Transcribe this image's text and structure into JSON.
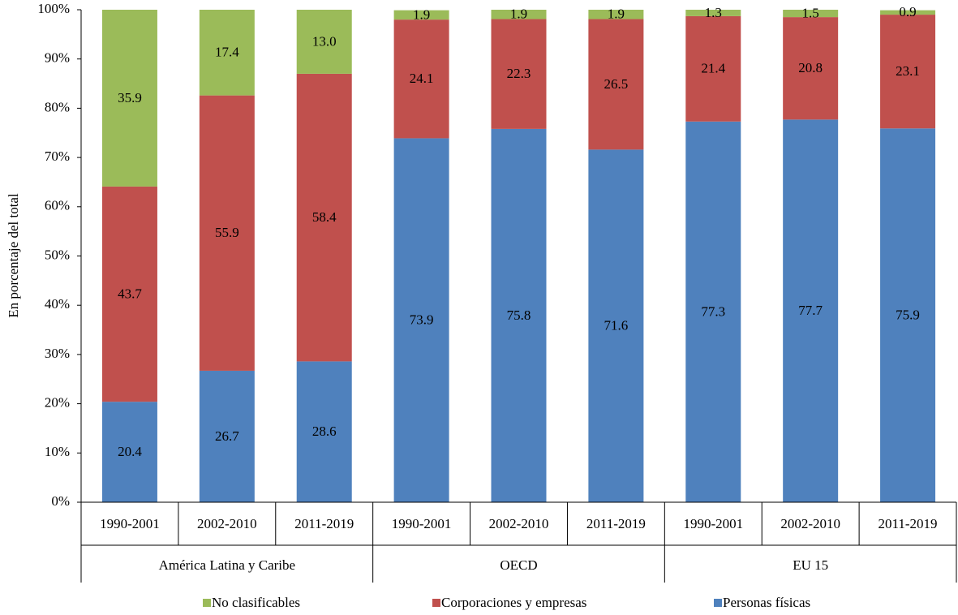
{
  "chart_data": {
    "type": "stacked_bar",
    "y_label": "En porcentaje del total",
    "groups": [
      {
        "name": "América Latina y Caribe",
        "categories": [
          "1990-2001",
          "2002-2010",
          "2011-2019"
        ]
      },
      {
        "name": "OECD",
        "categories": [
          "1990-2001",
          "2002-2010",
          "2011-2019"
        ]
      },
      {
        "name": "EU 15",
        "categories": [
          "1990-2001",
          "2002-2010",
          "2011-2019"
        ]
      }
    ],
    "series": [
      {
        "name": "Personas físicas",
        "color": "#4f81bd",
        "values": [
          20.4,
          26.7,
          28.6,
          73.9,
          75.8,
          71.6,
          77.3,
          77.7,
          75.9
        ],
        "value_labels": [
          "20.4",
          "26.7",
          "28.6",
          "73.9",
          "75.8",
          "71.6",
          "77.3",
          "77.7",
          "75.9"
        ]
      },
      {
        "name": "Corporaciones y empresas",
        "color": "#c0504d",
        "values": [
          43.7,
          55.9,
          58.4,
          24.1,
          22.3,
          26.5,
          21.4,
          20.8,
          23.1
        ],
        "value_labels": [
          "43.7",
          "55.9",
          "58.4",
          "24.1",
          "22.3",
          "26.5",
          "21.4",
          "20.8",
          "23.1"
        ]
      },
      {
        "name": "No clasificables",
        "color": "#9bbb59",
        "values": [
          35.9,
          17.4,
          13.0,
          1.9,
          1.9,
          1.9,
          1.3,
          1.5,
          0.9
        ],
        "value_labels": [
          "35.9",
          "17.4",
          "13.0",
          "1.9",
          "1.9",
          "1.9",
          "1.3",
          "1.5",
          "0.9"
        ]
      }
    ],
    "ylim": [
      0,
      100
    ],
    "yticks": [
      {
        "value": 0,
        "label": "0%"
      },
      {
        "value": 10,
        "label": "10%"
      },
      {
        "value": 20,
        "label": "20%"
      },
      {
        "value": 30,
        "label": "30%"
      },
      {
        "value": 40,
        "label": "40%"
      },
      {
        "value": 50,
        "label": "50%"
      },
      {
        "value": 60,
        "label": "60%"
      },
      {
        "value": 70,
        "label": "70%"
      },
      {
        "value": 80,
        "label": "80%"
      },
      {
        "value": 90,
        "label": "90%"
      },
      {
        "value": 100,
        "label": "100%"
      }
    ]
  }
}
